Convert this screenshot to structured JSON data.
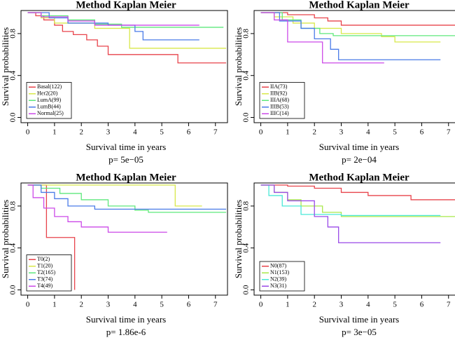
{
  "chart_data": [
    {
      "type": "line",
      "step": true,
      "title": "Method Kaplan Meier",
      "x_label": "Survival time in years",
      "y_label": "Survival probabilities",
      "subtitle": "p= 5e−05",
      "xlim": [
        -0.25,
        7.45
      ],
      "ylim": [
        -0.05,
        1.02
      ],
      "xticks": [
        0,
        1,
        2,
        3,
        4,
        5,
        6,
        7
      ],
      "yticks": [
        {
          "value": 0,
          "label": "0.0"
        },
        0.4,
        0.8
      ],
      "legend": "bottom-left",
      "series": [
        {
          "name": "Basal(122)",
          "color": "#e8434b",
          "x": [
            0,
            0.3,
            0.6,
            1,
            1.3,
            1.7,
            2.2,
            2.6,
            3,
            5.6,
            7.4
          ],
          "values": [
            1,
            0.97,
            0.93,
            0.88,
            0.82,
            0.79,
            0.74,
            0.68,
            0.6,
            0.52,
            0.52
          ]
        },
        {
          "name": "Her2(20)",
          "color": "#d8e84a",
          "x": [
            0,
            0.5,
            1,
            2.5,
            3.8,
            7.4
          ],
          "values": [
            1,
            0.95,
            0.9,
            0.85,
            0.66,
            0.66
          ]
        },
        {
          "name": "LumA(99)",
          "color": "#5ee87c",
          "x": [
            0,
            0.5,
            1.5,
            2.5,
            3.5,
            7.3
          ],
          "values": [
            1,
            0.97,
            0.93,
            0.89,
            0.86,
            0.86
          ]
        },
        {
          "name": "LumB(44)",
          "color": "#4a7be8",
          "x": [
            0,
            0.8,
            1.5,
            3,
            4,
            4.3,
            6.4
          ],
          "values": [
            1,
            0.95,
            0.9,
            0.88,
            0.82,
            0.74,
            0.74
          ]
        },
        {
          "name": "Normal(25)",
          "color": "#cc4ae8",
          "x": [
            0,
            0.5,
            1.5,
            2.5,
            6.4
          ],
          "values": [
            1,
            0.96,
            0.92,
            0.88,
            0.88
          ]
        }
      ]
    },
    {
      "type": "line",
      "step": true,
      "title": "Method Kaplan Meier",
      "x_label": "Survival time in years",
      "y_label": "Survival probabilities",
      "subtitle": "p= 2e−04",
      "xlim": [
        -0.25,
        7.45
      ],
      "ylim": [
        -0.05,
        1.02
      ],
      "xticks": [
        0,
        1,
        2,
        3,
        4,
        5,
        6,
        7
      ],
      "yticks": [
        {
          "value": 0,
          "label": "0.0"
        },
        0.4,
        0.8
      ],
      "legend": "bottom-left",
      "series": [
        {
          "name": "IIA(73)",
          "color": "#e8434b",
          "x": [
            0,
            1,
            2,
            2.5,
            3,
            7.4
          ],
          "values": [
            1,
            0.98,
            0.95,
            0.92,
            0.88,
            0.88
          ]
        },
        {
          "name": "IIB(92)",
          "color": "#d8e84a",
          "x": [
            0,
            0.5,
            1.2,
            2,
            3,
            4.5,
            5,
            6.7
          ],
          "values": [
            1,
            0.96,
            0.9,
            0.85,
            0.8,
            0.77,
            0.72,
            0.72
          ]
        },
        {
          "name": "IIIA(68)",
          "color": "#5ee87c",
          "x": [
            0,
            0.8,
            1.5,
            2.2,
            2.7,
            7.4
          ],
          "values": [
            1,
            0.93,
            0.85,
            0.8,
            0.78,
            0.78
          ]
        },
        {
          "name": "IIIB(53)",
          "color": "#4a7be8",
          "x": [
            0,
            0.7,
            1.5,
            2,
            2.6,
            2.9,
            6.7
          ],
          "values": [
            1,
            0.92,
            0.85,
            0.75,
            0.65,
            0.55,
            0.55
          ]
        },
        {
          "name": "IIIC(14)",
          "color": "#cc4ae8",
          "x": [
            0,
            0.5,
            1,
            2.3,
            4.6
          ],
          "values": [
            1,
            0.93,
            0.72,
            0.52,
            0.52
          ]
        }
      ]
    },
    {
      "type": "line",
      "step": true,
      "title": "Method Kaplan Meier",
      "x_label": "Survival time in years",
      "y_label": "Survival probabilities",
      "subtitle": "p= 1.86e-6",
      "xlim": [
        -0.25,
        7.45
      ],
      "ylim": [
        -0.05,
        1.02
      ],
      "xticks": [
        0,
        1,
        2,
        3,
        4,
        5,
        6,
        7
      ],
      "yticks": [
        {
          "value": 0,
          "label": "0.0"
        },
        0.4,
        0.8
      ],
      "legend": "bottom-left",
      "series": [
        {
          "name": "T0(2)",
          "color": "#e8434b",
          "x": [
            0,
            0.7,
            1.75
          ],
          "values": [
            1,
            0.5,
            0
          ]
        },
        {
          "name": "T1(20)",
          "color": "#d8e84a",
          "x": [
            0,
            5.5,
            6.5
          ],
          "values": [
            1,
            0.8,
            0.8
          ]
        },
        {
          "name": "T2(165)",
          "color": "#5ee87c",
          "x": [
            0,
            0.5,
            1.2,
            2,
            3,
            4,
            4.5,
            7.4
          ],
          "values": [
            1,
            0.97,
            0.92,
            0.86,
            0.8,
            0.76,
            0.74,
            0.74
          ]
        },
        {
          "name": "T3(74)",
          "color": "#4a7be8",
          "x": [
            0,
            0.5,
            1,
            1.5,
            2.5,
            7.4
          ],
          "values": [
            1,
            0.93,
            0.87,
            0.8,
            0.77,
            0.77
          ]
        },
        {
          "name": "T4(49)",
          "color": "#cc4ae8",
          "x": [
            0,
            0.2,
            0.6,
            1,
            1.5,
            2,
            3,
            5.2
          ],
          "values": [
            1,
            0.88,
            0.78,
            0.7,
            0.65,
            0.6,
            0.55,
            0.55
          ]
        }
      ]
    },
    {
      "type": "line",
      "step": true,
      "title": "Method Kaplan Meier",
      "x_label": "Survival time in years",
      "y_label": "Survival probabilities",
      "subtitle": "p= 3e−05",
      "xlim": [
        -0.25,
        7.45
      ],
      "ylim": [
        -0.05,
        1.02
      ],
      "xticks": [
        0,
        1,
        2,
        3,
        4,
        5,
        6,
        7
      ],
      "yticks": [
        {
          "value": 0,
          "label": "0.0"
        },
        0.4,
        0.8
      ],
      "legend": "bottom-left",
      "series": [
        {
          "name": "N0(87)",
          "color": "#e8434b",
          "x": [
            0,
            1,
            2,
            3,
            4,
            5.6,
            7.4
          ],
          "values": [
            1,
            0.99,
            0.97,
            0.93,
            0.9,
            0.86,
            0.86
          ]
        },
        {
          "name": "N1(153)",
          "color": "#a8e84a",
          "x": [
            0,
            0.5,
            1,
            1.5,
            2.3,
            3,
            7.4
          ],
          "values": [
            1,
            0.93,
            0.86,
            0.8,
            0.74,
            0.7,
            0.7
          ]
        },
        {
          "name": "N2(39)",
          "color": "#4ae8d8",
          "x": [
            0,
            0.3,
            0.8,
            1.5,
            3,
            6.7
          ],
          "values": [
            1,
            0.9,
            0.8,
            0.72,
            0.71,
            0.71
          ]
        },
        {
          "name": "N3(31)",
          "color": "#9a4ae8",
          "x": [
            0,
            0.5,
            1,
            2,
            2.5,
            2.9,
            6.7
          ],
          "values": [
            1,
            0.93,
            0.85,
            0.7,
            0.6,
            0.45,
            0.45
          ]
        }
      ]
    }
  ]
}
